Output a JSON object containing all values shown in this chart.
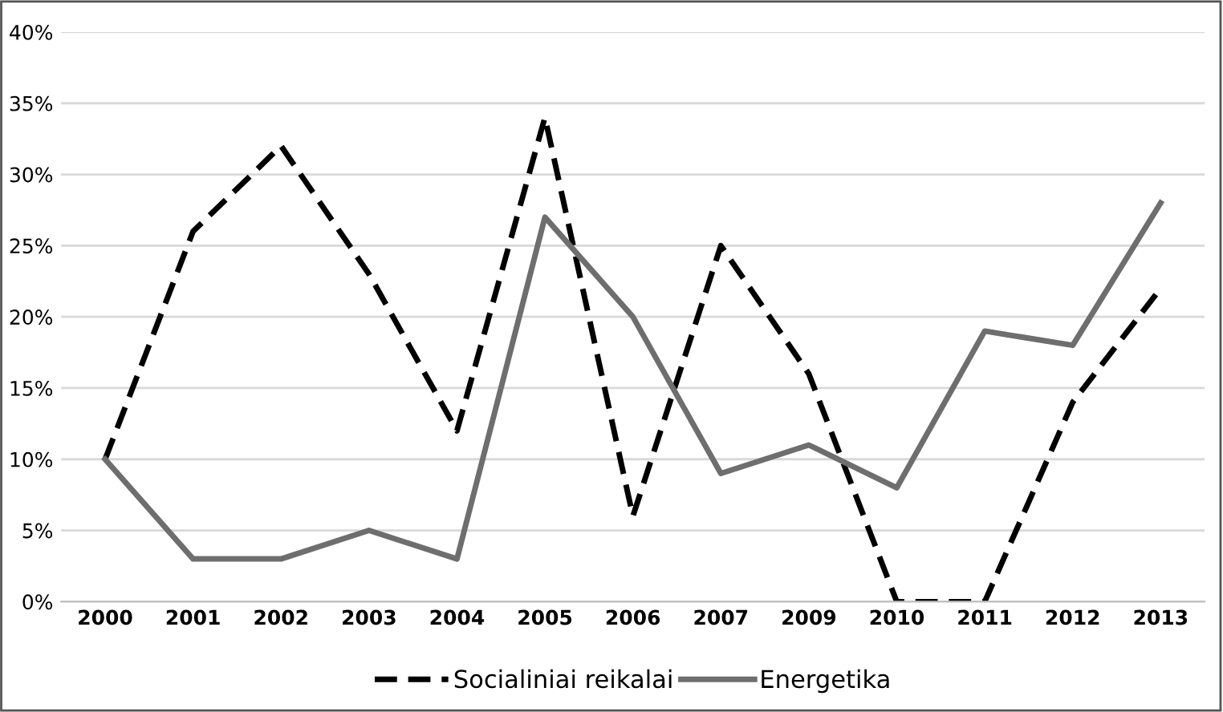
{
  "chart_data": {
    "type": "line",
    "categories": [
      "2000",
      "2001",
      "2002",
      "2003",
      "2004",
      "2005",
      "2006",
      "2007",
      "2009",
      "2010",
      "2011",
      "2012",
      "2013"
    ],
    "series": [
      {
        "name": "Socialiniai reikalai",
        "color": "#000000",
        "line_style": "dashed",
        "values": [
          10,
          26,
          32,
          23,
          12,
          34,
          6,
          25,
          16,
          0,
          0,
          14,
          22
        ]
      },
      {
        "name": "Energetika",
        "color": "#6e6e6e",
        "line_style": "solid",
        "values": [
          10,
          3,
          3,
          5,
          3,
          27,
          20,
          9,
          11,
          8,
          19,
          18,
          28
        ]
      }
    ],
    "ylim": [
      0,
      40
    ],
    "yticks": [
      {
        "value": 0,
        "label": "0%"
      },
      {
        "value": 5,
        "label": "5%"
      },
      {
        "value": 10,
        "label": "10%"
      },
      {
        "value": 15,
        "label": "15%"
      },
      {
        "value": 20,
        "label": "20%"
      },
      {
        "value": 25,
        "label": "25%"
      },
      {
        "value": 30,
        "label": "30%"
      },
      {
        "value": 35,
        "label": "35%"
      },
      {
        "value": 40,
        "label": "40%"
      }
    ],
    "grid": "y",
    "legend": "bottom",
    "marker": "none"
  }
}
